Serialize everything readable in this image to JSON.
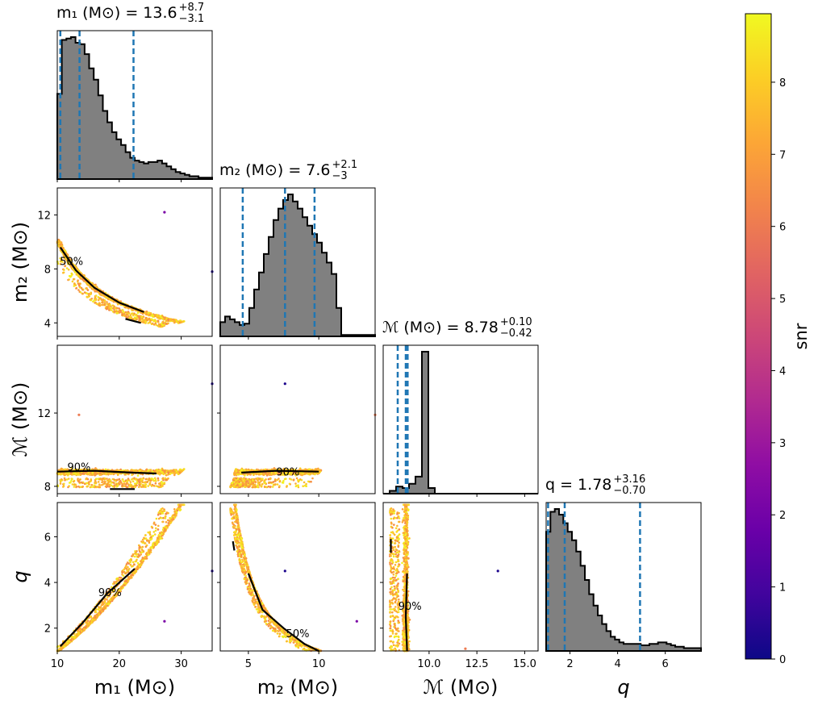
{
  "chart_data": {
    "type": "corner",
    "description": "Corner plot of posterior samples with 1D histograms on the diagonal, scatter (colored by snr) and 50%/90% contours off-diagonal.",
    "params": [
      {
        "key": "m1",
        "axis_label": "m₁ (M⊙)",
        "title": "m₁ (M⊙) = 13.6 +8.7 −3.1",
        "title_main": "m₁ (M⊙) = 13.6",
        "title_sup": "+8.7",
        "title_sub": "−3.1",
        "range": [
          10,
          35
        ],
        "ticks": [
          10,
          20,
          30
        ],
        "median": 13.6,
        "lower": 10.5,
        "upper": 22.3
      },
      {
        "key": "m2",
        "axis_label": "m₂ (M⊙)",
        "title": "m₂ (M⊙) = 7.6 +2.1 −3",
        "title_main": "m₂ (M⊙) = 7.6",
        "title_sup": "+2.1",
        "title_sub": "−3",
        "range": [
          3.0,
          14.0
        ],
        "ticks": [
          5,
          10
        ],
        "yticks": [
          4,
          8,
          12
        ],
        "median": 7.6,
        "lower": 4.6,
        "upper": 9.7
      },
      {
        "key": "mc",
        "axis_label": "ℳ (M⊙)",
        "title": "ℳ (M⊙) = 8.78 +0.10 −0.42",
        "title_main": "ℳ (M⊙) = 8.78",
        "title_sup": "+0.10",
        "title_sub": "−0.42",
        "range": [
          7.6,
          15.7
        ],
        "ticks": [
          10.0,
          12.5,
          15.0
        ],
        "tick_labels": [
          "10.0",
          "12.5",
          "15.0"
        ],
        "yticks": [
          8,
          12
        ],
        "median": 8.78,
        "lower": 8.36,
        "upper": 8.88
      },
      {
        "key": "q",
        "axis_label": "q",
        "title": "q = 1.78 +3.16 −0.70",
        "title_main": "q = 1.78",
        "title_sup": "+3.16",
        "title_sub": "−0.70",
        "range": [
          1.0,
          7.5
        ],
        "ticks": [
          2,
          4,
          6
        ],
        "yticks": [
          2,
          4,
          6
        ],
        "median": 1.78,
        "lower": 1.08,
        "upper": 4.94
      }
    ],
    "histograms": {
      "m1": [
        0.6,
        0.98,
        0.99,
        1.0,
        0.96,
        0.95,
        0.88,
        0.78,
        0.7,
        0.59,
        0.48,
        0.4,
        0.33,
        0.28,
        0.24,
        0.19,
        0.15,
        0.13,
        0.12,
        0.11,
        0.12,
        0.12,
        0.13,
        0.11,
        0.09,
        0.07,
        0.05,
        0.04,
        0.03,
        0.02,
        0.02,
        0.01,
        0.01,
        0.01
      ],
      "m2": [
        0.1,
        0.14,
        0.12,
        0.1,
        0.08,
        0.09,
        0.2,
        0.33,
        0.45,
        0.58,
        0.7,
        0.82,
        0.9,
        0.96,
        1.0,
        0.95,
        0.9,
        0.84,
        0.78,
        0.72,
        0.66,
        0.59,
        0.52,
        0.44,
        0.2,
        0.01,
        0.01,
        0.01,
        0.01,
        0.01,
        0.01,
        0.01
      ],
      "mc": [
        0.0,
        0.02,
        0.05,
        0.04,
        0.07,
        0.12,
        1.0,
        0.04,
        0.0,
        0.0,
        0.0,
        0.0,
        0.0,
        0.0,
        0.0,
        0.0,
        0.0,
        0.0,
        0.0,
        0.0,
        0.0,
        0.0,
        0.0,
        0.0
      ],
      "q": [
        0.84,
        0.98,
        1.0,
        0.96,
        0.9,
        0.84,
        0.78,
        0.7,
        0.6,
        0.5,
        0.4,
        0.32,
        0.25,
        0.19,
        0.14,
        0.1,
        0.08,
        0.06,
        0.05,
        0.05,
        0.05,
        0.05,
        0.04,
        0.04,
        0.05,
        0.05,
        0.06,
        0.06,
        0.05,
        0.04,
        0.03,
        0.03,
        0.02,
        0.02,
        0.02,
        0.02
      ]
    },
    "colorbar": {
      "label": "snr",
      "min": 0,
      "max": 8.95,
      "ticks": [
        0,
        1,
        2,
        3,
        4,
        5,
        6,
        7,
        8
      ],
      "colormap": "plasma"
    },
    "contour_labels": [
      "50%",
      "90%"
    ],
    "outlier_points": [
      {
        "x": "m1",
        "y": "m2",
        "points": [
          [
            27.3,
            12.2,
            2.2
          ],
          [
            35.0,
            7.8,
            0.3
          ]
        ]
      },
      {
        "x": "m1",
        "y": "mc",
        "points": [
          [
            13.5,
            11.9,
            6.0
          ],
          [
            35.0,
            13.6,
            0.3
          ]
        ]
      },
      {
        "x": "m1",
        "y": "q",
        "points": [
          [
            27.3,
            2.3,
            2.2
          ],
          [
            35.0,
            4.5,
            0.3
          ]
        ]
      },
      {
        "x": "m2",
        "y": "mc",
        "points": [
          [
            7.6,
            13.6,
            0.3
          ],
          [
            14.0,
            11.9,
            6.0
          ]
        ]
      },
      {
        "x": "m2",
        "y": "q",
        "points": [
          [
            7.6,
            4.5,
            0.3
          ],
          [
            12.7,
            2.3,
            2.2
          ]
        ]
      },
      {
        "x": "mc",
        "y": "q",
        "points": [
          [
            13.6,
            4.5,
            0.3
          ],
          [
            11.9,
            1.1,
            6.0
          ]
        ]
      }
    ],
    "hist_color": "#808080",
    "quantile_color": "#1f77b4"
  }
}
